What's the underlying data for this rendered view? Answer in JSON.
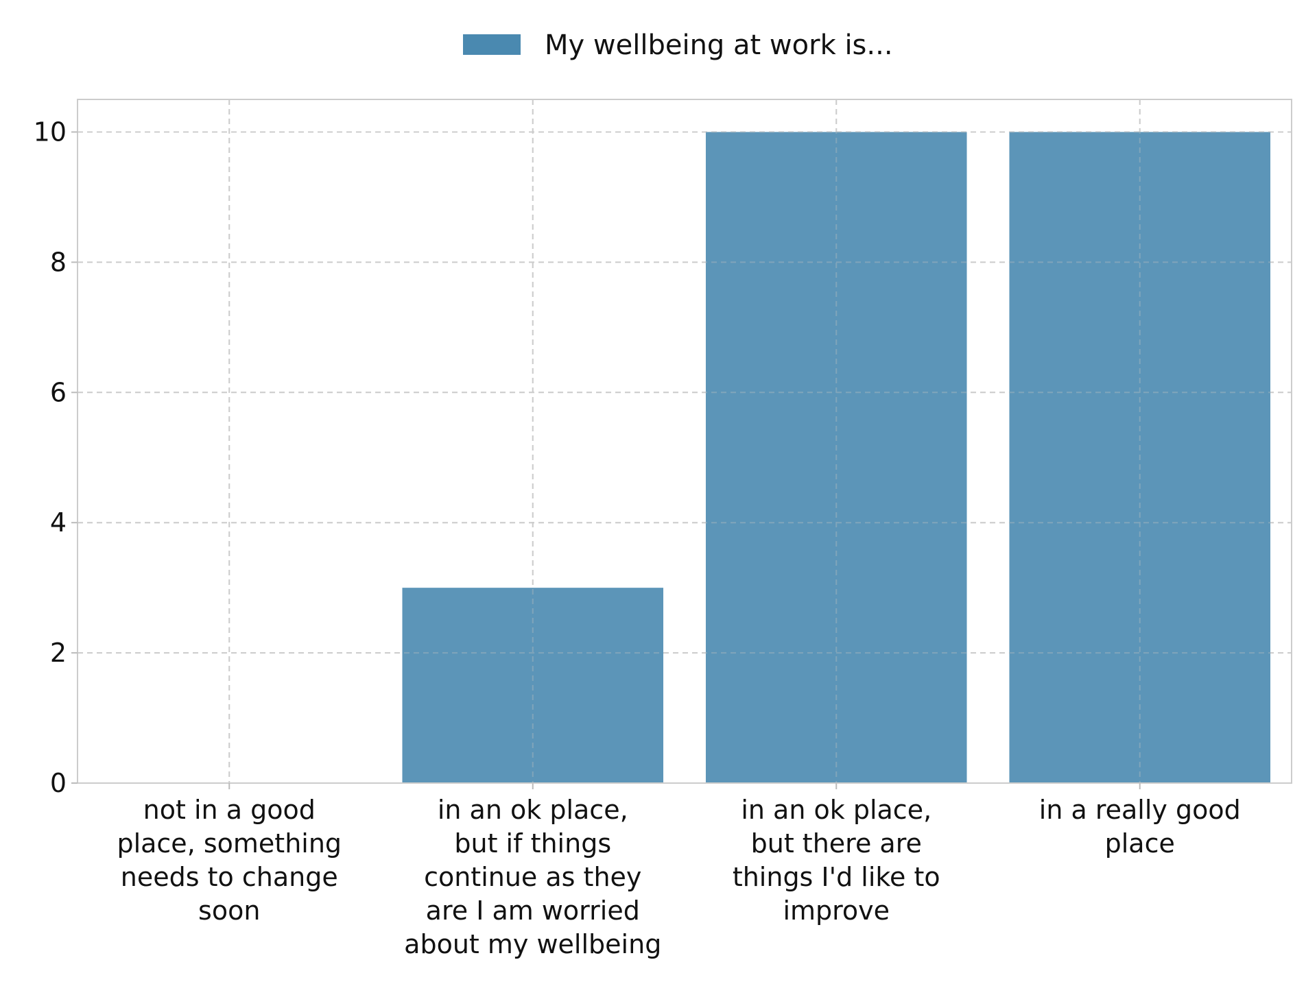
{
  "chart_data": {
    "type": "bar",
    "categories": [
      [
        "not in a good",
        "place, something",
        "needs to change",
        "soon"
      ],
      [
        "in an ok place,",
        "but if things",
        "continue as they",
        "are I am worried",
        "about my wellbeing"
      ],
      [
        "in an ok place,",
        "but there are",
        "things I'd like to",
        "improve"
      ],
      [
        "in a really good",
        "place"
      ]
    ],
    "series": [
      {
        "name": "My wellbeing at work is...",
        "values": [
          0,
          3,
          10,
          10
        ]
      }
    ],
    "xlabel": "",
    "ylabel": "",
    "ylim": [
      0,
      10.5
    ],
    "yticks": [
      "0",
      "2",
      "4",
      "6",
      "8",
      "10"
    ],
    "grid": true,
    "legend_position": "top-center",
    "colors": {
      "bar": "#4a89b0",
      "grid": "#cccccc",
      "frame": "#cccccc"
    }
  }
}
